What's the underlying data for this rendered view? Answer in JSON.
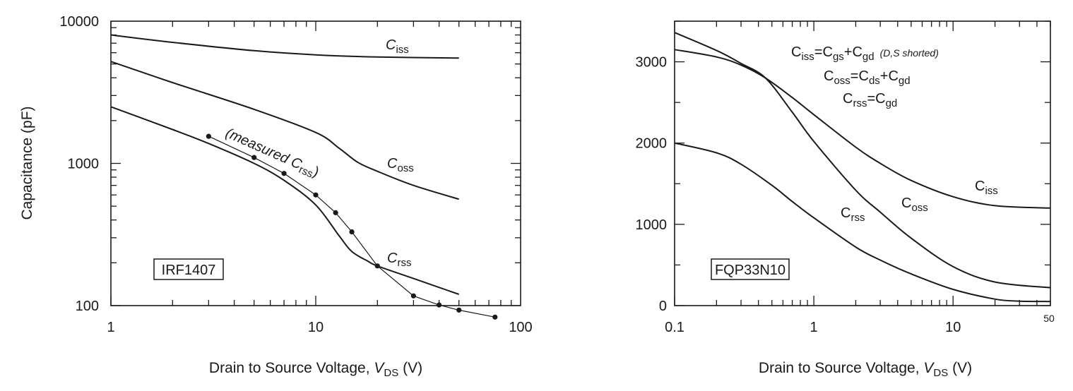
{
  "chart_data": [
    {
      "type": "line",
      "id": "left",
      "box_label": "IRF1407",
      "xlabel": {
        "prefix": "Drain to Source Voltage, ",
        "var": "V",
        "sub": "DS",
        "unit": "  (V)"
      },
      "ylabel": "Capacitance (pF)",
      "x_scale": "log",
      "y_scale": "log",
      "xlim": [
        1,
        100
      ],
      "ylim": [
        100,
        10000
      ],
      "x_ticks": [
        {
          "v": 1,
          "label": "1"
        },
        {
          "v": 10,
          "label": "10"
        },
        {
          "v": 100,
          "label": "100"
        }
      ],
      "y_ticks": [
        {
          "v": 100,
          "label": "100"
        },
        {
          "v": 1000,
          "label": "1000"
        },
        {
          "v": 10000,
          "label": "10000"
        }
      ],
      "series": [
        {
          "name": "Ciss",
          "main": "C",
          "sub": "iss",
          "x": [
            1,
            2,
            5,
            10,
            20,
            50
          ],
          "y": [
            8000,
            7100,
            6200,
            5800,
            5600,
            5500
          ]
        },
        {
          "name": "Coss",
          "main": "C",
          "sub": "oss",
          "x": [
            1,
            2,
            5,
            10,
            13,
            16,
            20,
            30,
            50
          ],
          "y": [
            5200,
            3700,
            2400,
            1650,
            1280,
            1020,
            880,
            700,
            560
          ]
        },
        {
          "name": "Crss",
          "main": "C",
          "sub": "rss",
          "x": [
            1,
            2,
            3,
            5,
            7,
            10,
            13,
            15,
            18,
            20,
            30,
            50
          ],
          "y": [
            2500,
            1730,
            1380,
            1000,
            760,
            510,
            310,
            240,
            205,
            190,
            155,
            120
          ]
        }
      ],
      "measured": {
        "label_open": "(measured ",
        "label_main": "C",
        "label_sub": "rss",
        "label_close": ")",
        "x": [
          3,
          5,
          7,
          10,
          12.5,
          15,
          20,
          30,
          40,
          50,
          75
        ],
        "y": [
          1550,
          1100,
          850,
          600,
          450,
          330,
          190,
          117,
          101,
          93,
          83
        ]
      }
    },
    {
      "type": "line",
      "id": "right",
      "box_label": "FQP33N10",
      "xlabel": {
        "prefix": "Drain to Source Voltage, ",
        "var": "V",
        "sub": "DS",
        "unit": "  (V)"
      },
      "ylabel": "",
      "x_scale": "log",
      "y_scale": "linear",
      "xlim": [
        0.1,
        50
      ],
      "ylim": [
        0,
        3500
      ],
      "x_ticks": [
        {
          "v": 0.1,
          "label": "0.1"
        },
        {
          "v": 1,
          "label": "1"
        },
        {
          "v": 10,
          "label": "10"
        },
        {
          "v": 50,
          "label": "50"
        }
      ],
      "y_ticks": [
        {
          "v": 0,
          "label": "0"
        },
        {
          "v": 1000,
          "label": "1000"
        },
        {
          "v": 2000,
          "label": "2000"
        },
        {
          "v": 3000,
          "label": "3000"
        }
      ],
      "series": [
        {
          "name": "Ciss",
          "main": "C",
          "sub": "iss",
          "x": [
            0.1,
            0.2,
            0.3,
            0.45,
            0.7,
            1,
            2,
            3,
            5,
            10,
            20,
            50
          ],
          "y": [
            3150,
            3060,
            2960,
            2800,
            2560,
            2350,
            1950,
            1750,
            1540,
            1340,
            1230,
            1200
          ]
        },
        {
          "name": "Coss",
          "main": "C",
          "sub": "oss",
          "x": [
            0.1,
            0.2,
            0.3,
            0.45,
            0.7,
            1,
            2,
            3,
            5,
            10,
            20,
            50
          ],
          "y": [
            3360,
            3140,
            2980,
            2800,
            2380,
            2020,
            1420,
            1150,
            830,
            480,
            290,
            220
          ]
        },
        {
          "name": "Crss",
          "main": "C",
          "sub": "rss",
          "x": [
            0.1,
            0.2,
            0.3,
            0.5,
            0.7,
            1,
            2,
            3,
            5,
            10,
            20,
            30,
            50
          ],
          "y": [
            2000,
            1880,
            1740,
            1480,
            1280,
            1080,
            720,
            560,
            390,
            200,
            80,
            55,
            50
          ]
        }
      ],
      "legend_lines": [
        [
          [
            "C",
            "iss"
          ],
          [
            "=",
            ""
          ],
          [
            "C",
            "gs"
          ],
          [
            "+",
            ""
          ],
          [
            "C",
            "gd"
          ]
        ],
        [
          [
            "C",
            "oss"
          ],
          [
            "=",
            ""
          ],
          [
            "C",
            "ds"
          ],
          [
            "+",
            ""
          ],
          [
            "C",
            "gd"
          ]
        ],
        [
          [
            "C",
            "rss"
          ],
          [
            "=",
            ""
          ],
          [
            "C",
            "gd"
          ]
        ]
      ],
      "legend_note": "(D,S shorted)"
    }
  ]
}
